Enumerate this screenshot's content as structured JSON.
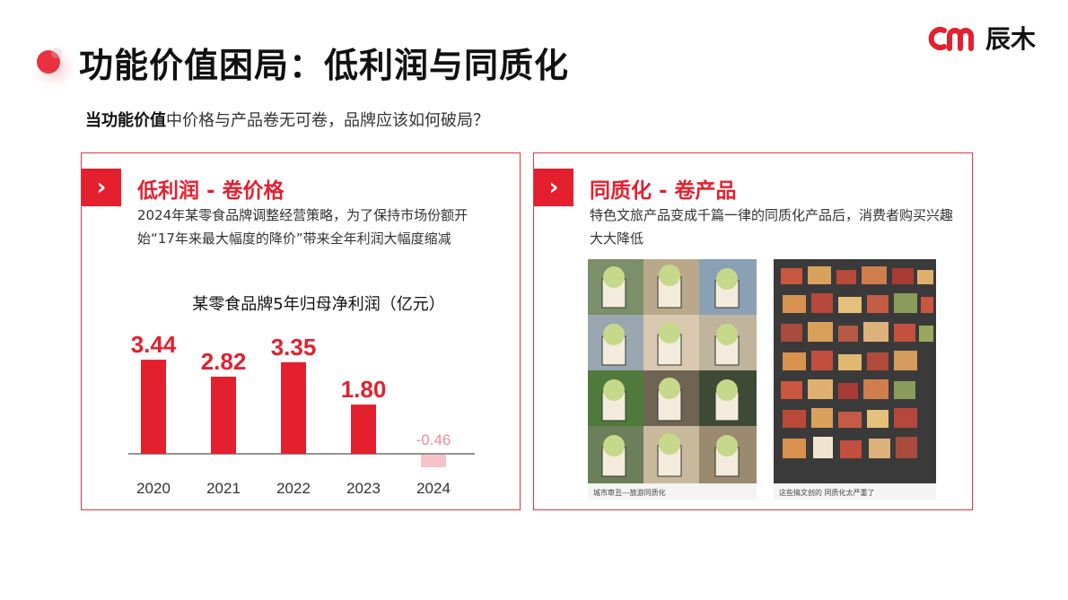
{
  "header": {
    "title": "功能价值困局：低利润与同质化",
    "brand_name": "辰木"
  },
  "subtitle": {
    "bold": "当功能价值",
    "rest": "中价格与产品卷无可卷，品牌应该如何破局？"
  },
  "left_card": {
    "chevron": "›",
    "heading": "低利润 - 卷价格",
    "desc": "2024年某零食品牌调整经营策略，为了保持市场份额开始“17年来最大幅度的降价”带来全年利润大幅度缩减"
  },
  "right_card": {
    "chevron": "›",
    "heading": "同质化 - 卷产品",
    "desc": "特色文旅产品变成千篇一律的同质化产品后，消费者购买兴趣大大降低",
    "photo_a_caption": "城市审丑---旅游同质化",
    "photo_b_caption": "这些搞文创的 同质化太严重了"
  },
  "colors": {
    "accent": "#e4202f",
    "negative_bar": "#f7c2c8",
    "negative_label": "#f08a95"
  },
  "chart_data": {
    "type": "bar",
    "title": "某零食品牌5年归母净利润（亿元）",
    "categories": [
      "2020",
      "2021",
      "2022",
      "2023",
      "2024"
    ],
    "values": [
      3.44,
      2.82,
      3.35,
      1.8,
      -0.46
    ],
    "data_labels": [
      "3.44",
      "2.82",
      "3.35",
      "1.80",
      "-0.46"
    ],
    "xlabel": "",
    "ylabel": "",
    "ylim": [
      -0.6,
      3.6
    ],
    "grid": false,
    "legend": "none"
  }
}
